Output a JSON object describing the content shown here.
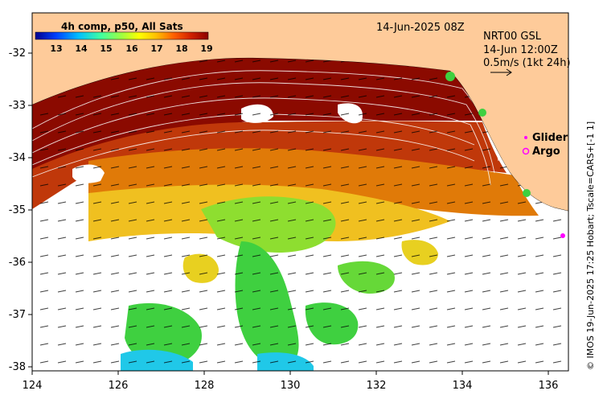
{
  "title_date": "14-Jun-2025 08Z",
  "colorbar": {
    "title": "4h comp, p50, All Sats",
    "ticks": [
      "13",
      "14",
      "15",
      "16",
      "17",
      "18",
      "19"
    ],
    "colors": [
      "#00008f",
      "#0040ff",
      "#00bfff",
      "#40ff9f",
      "#9fff40",
      "#ffff00",
      "#ffbf00",
      "#ff6000",
      "#d02000",
      "#8b0000"
    ]
  },
  "velocity": {
    "source": "NRT00 GSL",
    "time": "14-Jun 12:00Z",
    "scale_text": "0.5m/s (1kt 24h)"
  },
  "legend": {
    "glider": "Glider",
    "argo": "Argo",
    "glider_color": "#ff00ff",
    "argo_color": "#ff00ff"
  },
  "axes": {
    "y_labels": [
      "-32",
      "-33",
      "-34",
      "-35",
      "-36",
      "-37",
      "-38"
    ],
    "x_labels": [
      "124",
      "126",
      "128",
      "130",
      "132",
      "134",
      "136"
    ]
  },
  "credit": "© IMOS 19-Jun-2025 17:25 Hobart; Tscale=CARS+[-1 1]",
  "colors": {
    "land": "#fecb9a",
    "dark_red": "#8b0a00",
    "red_orange": "#c83a05",
    "orange": "#e07a08",
    "yellow": "#f0c020",
    "green": "#3fd040",
    "cyan": "#20c8e8"
  }
}
